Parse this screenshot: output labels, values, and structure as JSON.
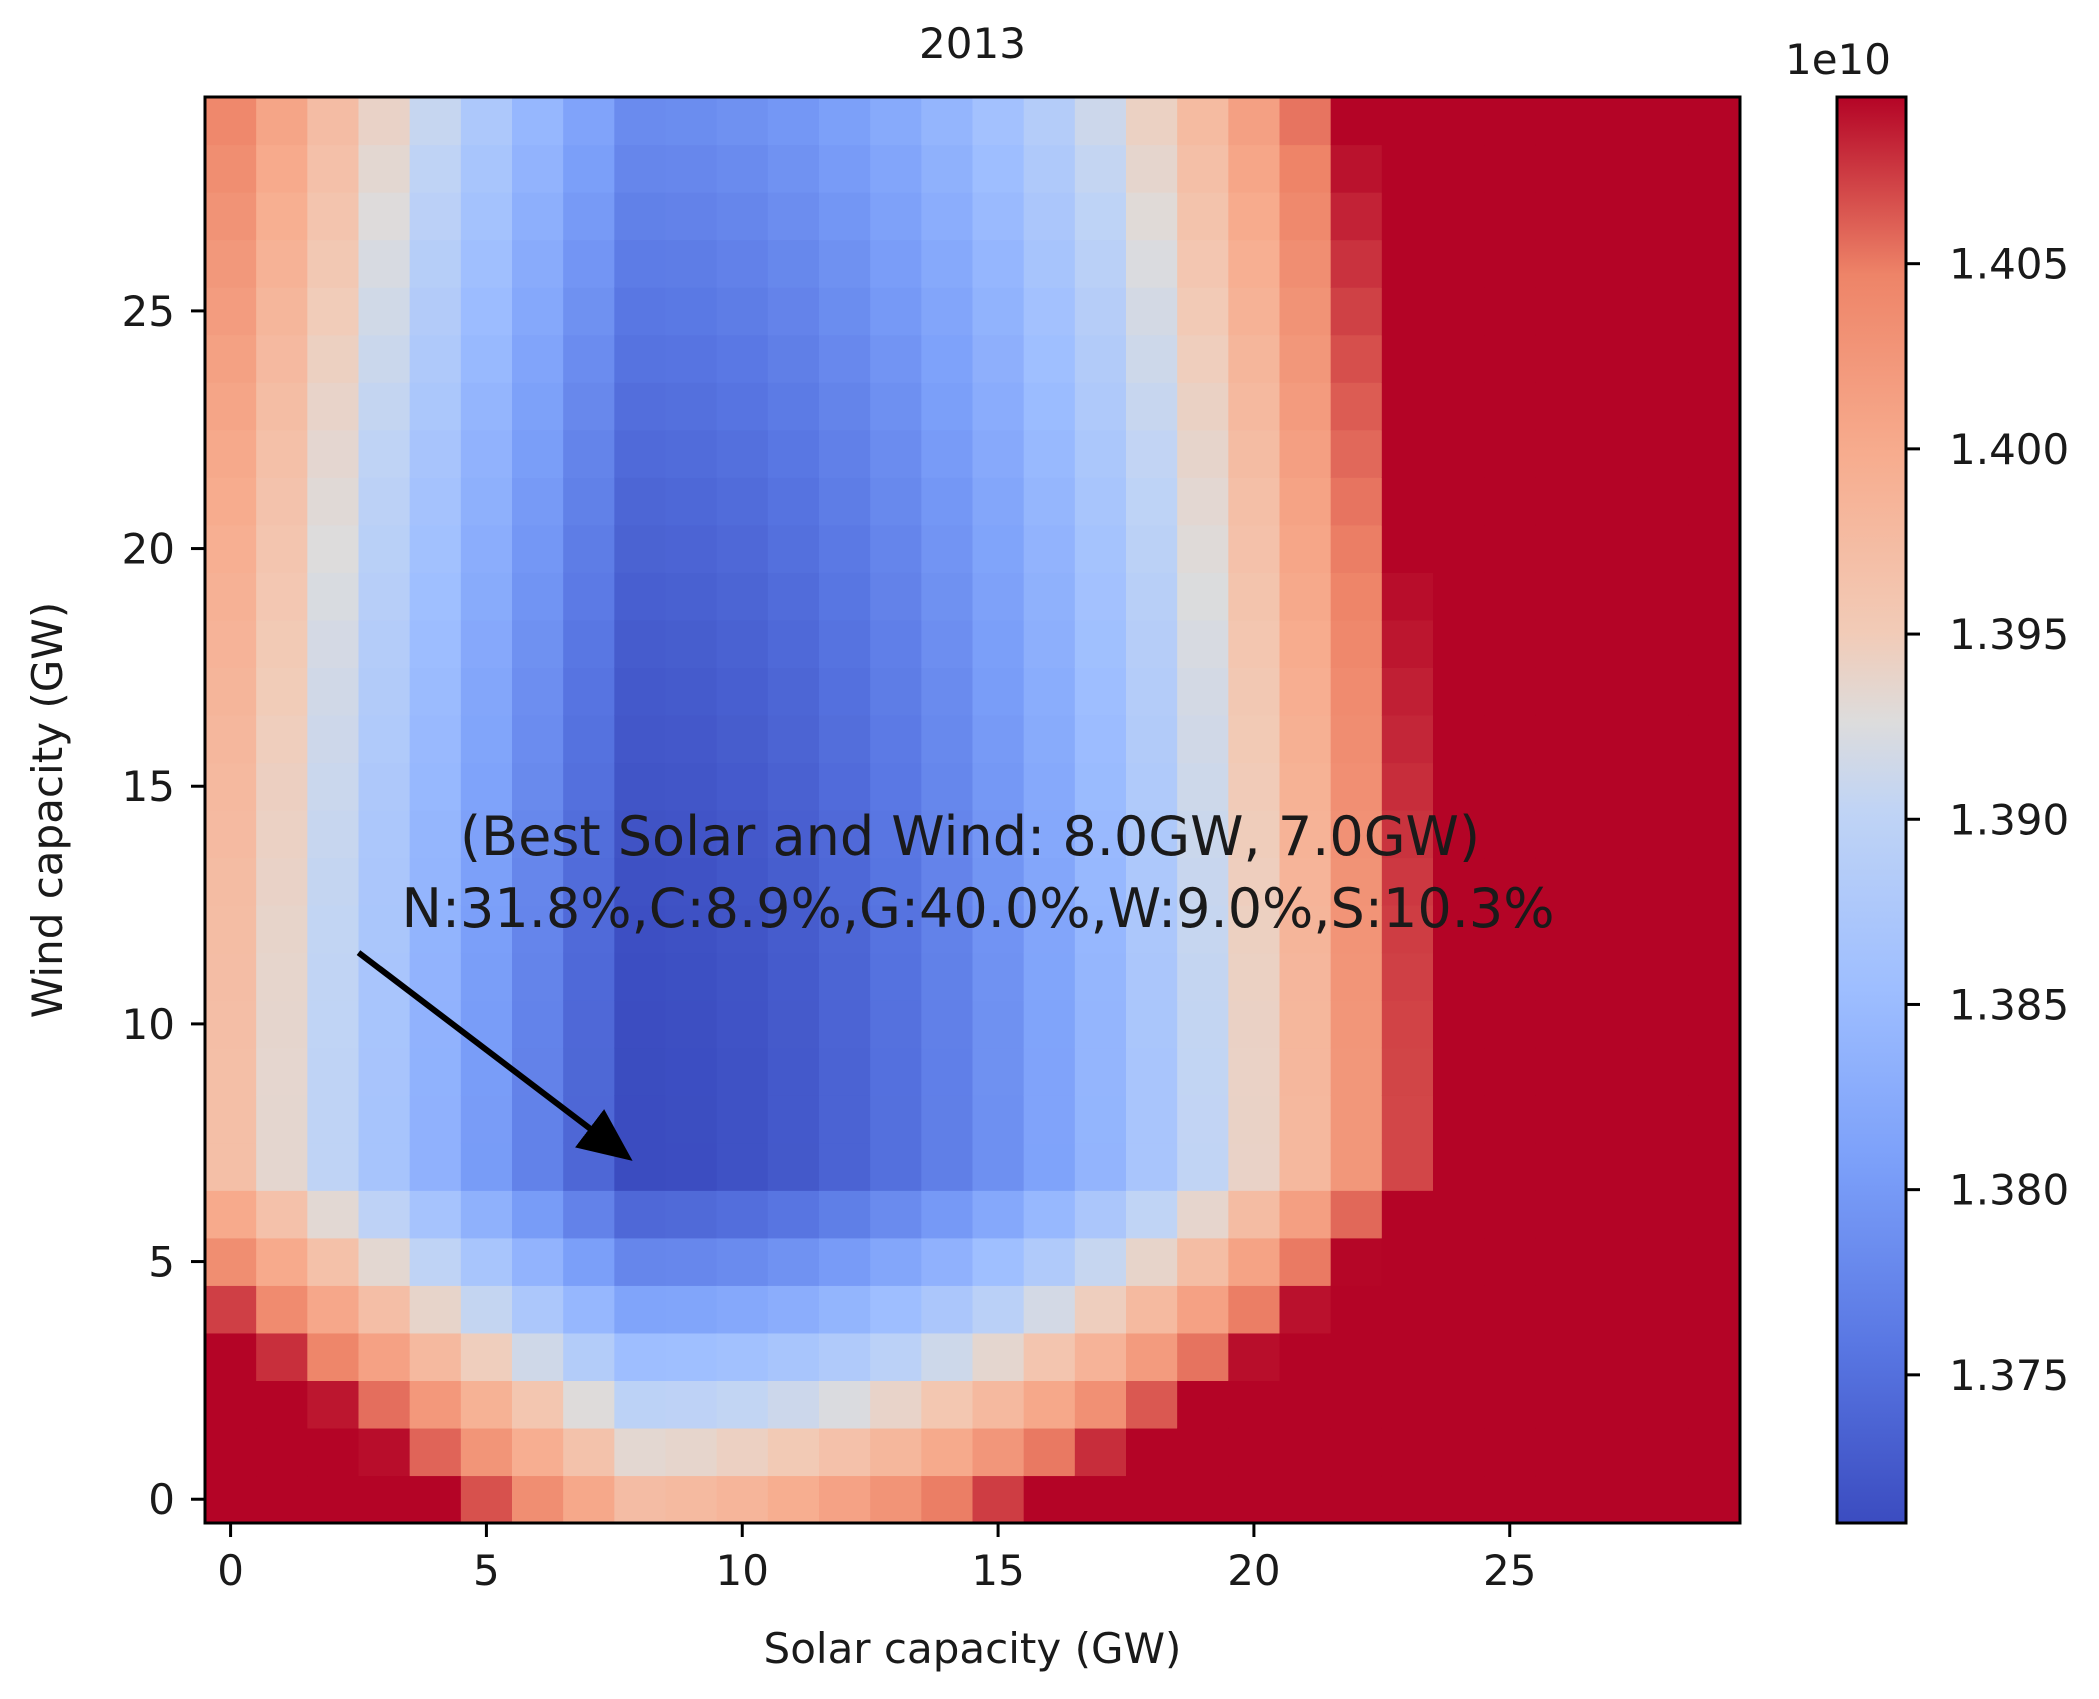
{
  "chart_data": {
    "type": "heatmap",
    "title": "2013",
    "xlabel": "Solar capacity (GW)",
    "ylabel": "Wind capacity (GW)",
    "x_range": [
      0,
      29
    ],
    "y_range": [
      0,
      29
    ],
    "x_ticks": [
      0,
      5,
      10,
      15,
      20,
      25
    ],
    "y_ticks": [
      0,
      5,
      10,
      15,
      20,
      25
    ],
    "colormap": "coolwarm",
    "value_range": [
      13710000000.0,
      14095000000.0
    ],
    "colorbar": {
      "offset_label": "1e10",
      "ticks": [
        1.375,
        1.38,
        1.385,
        1.39,
        1.395,
        1.4,
        1.405
      ],
      "tick_labels": [
        "1.375",
        "1.380",
        "1.385",
        "1.390",
        "1.395",
        "1.400",
        "1.405"
      ]
    },
    "minimum": {
      "x": 8,
      "y": 7
    },
    "estimated_values": [
      {
        "x": 8,
        "y": 7,
        "value": 13710000000.0
      },
      {
        "x": 0,
        "y": 0,
        "value": 13910000000.0
      },
      {
        "x": 0,
        "y": 29,
        "value": 13930000000.0
      },
      {
        "x": 29,
        "y": 0,
        "value": 14095000000.0
      },
      {
        "x": 29,
        "y": 29,
        "value": 14050000000.0
      },
      {
        "x": 20,
        "y": 8,
        "value": 13860000000.0
      },
      {
        "x": 25,
        "y": 15,
        "value": 13950000000.0
      }
    ],
    "annotation": {
      "line1": "(Best Solar and Wind: 8.0GW, 7.0GW)",
      "line2": "N:31.8%,C:8.9%,G:40.0%,W:9.0%,S:10.3%",
      "arrow_from": {
        "x": 2.5,
        "y": 11.5
      },
      "arrow_to": {
        "x": 8,
        "y": 7
      }
    }
  }
}
